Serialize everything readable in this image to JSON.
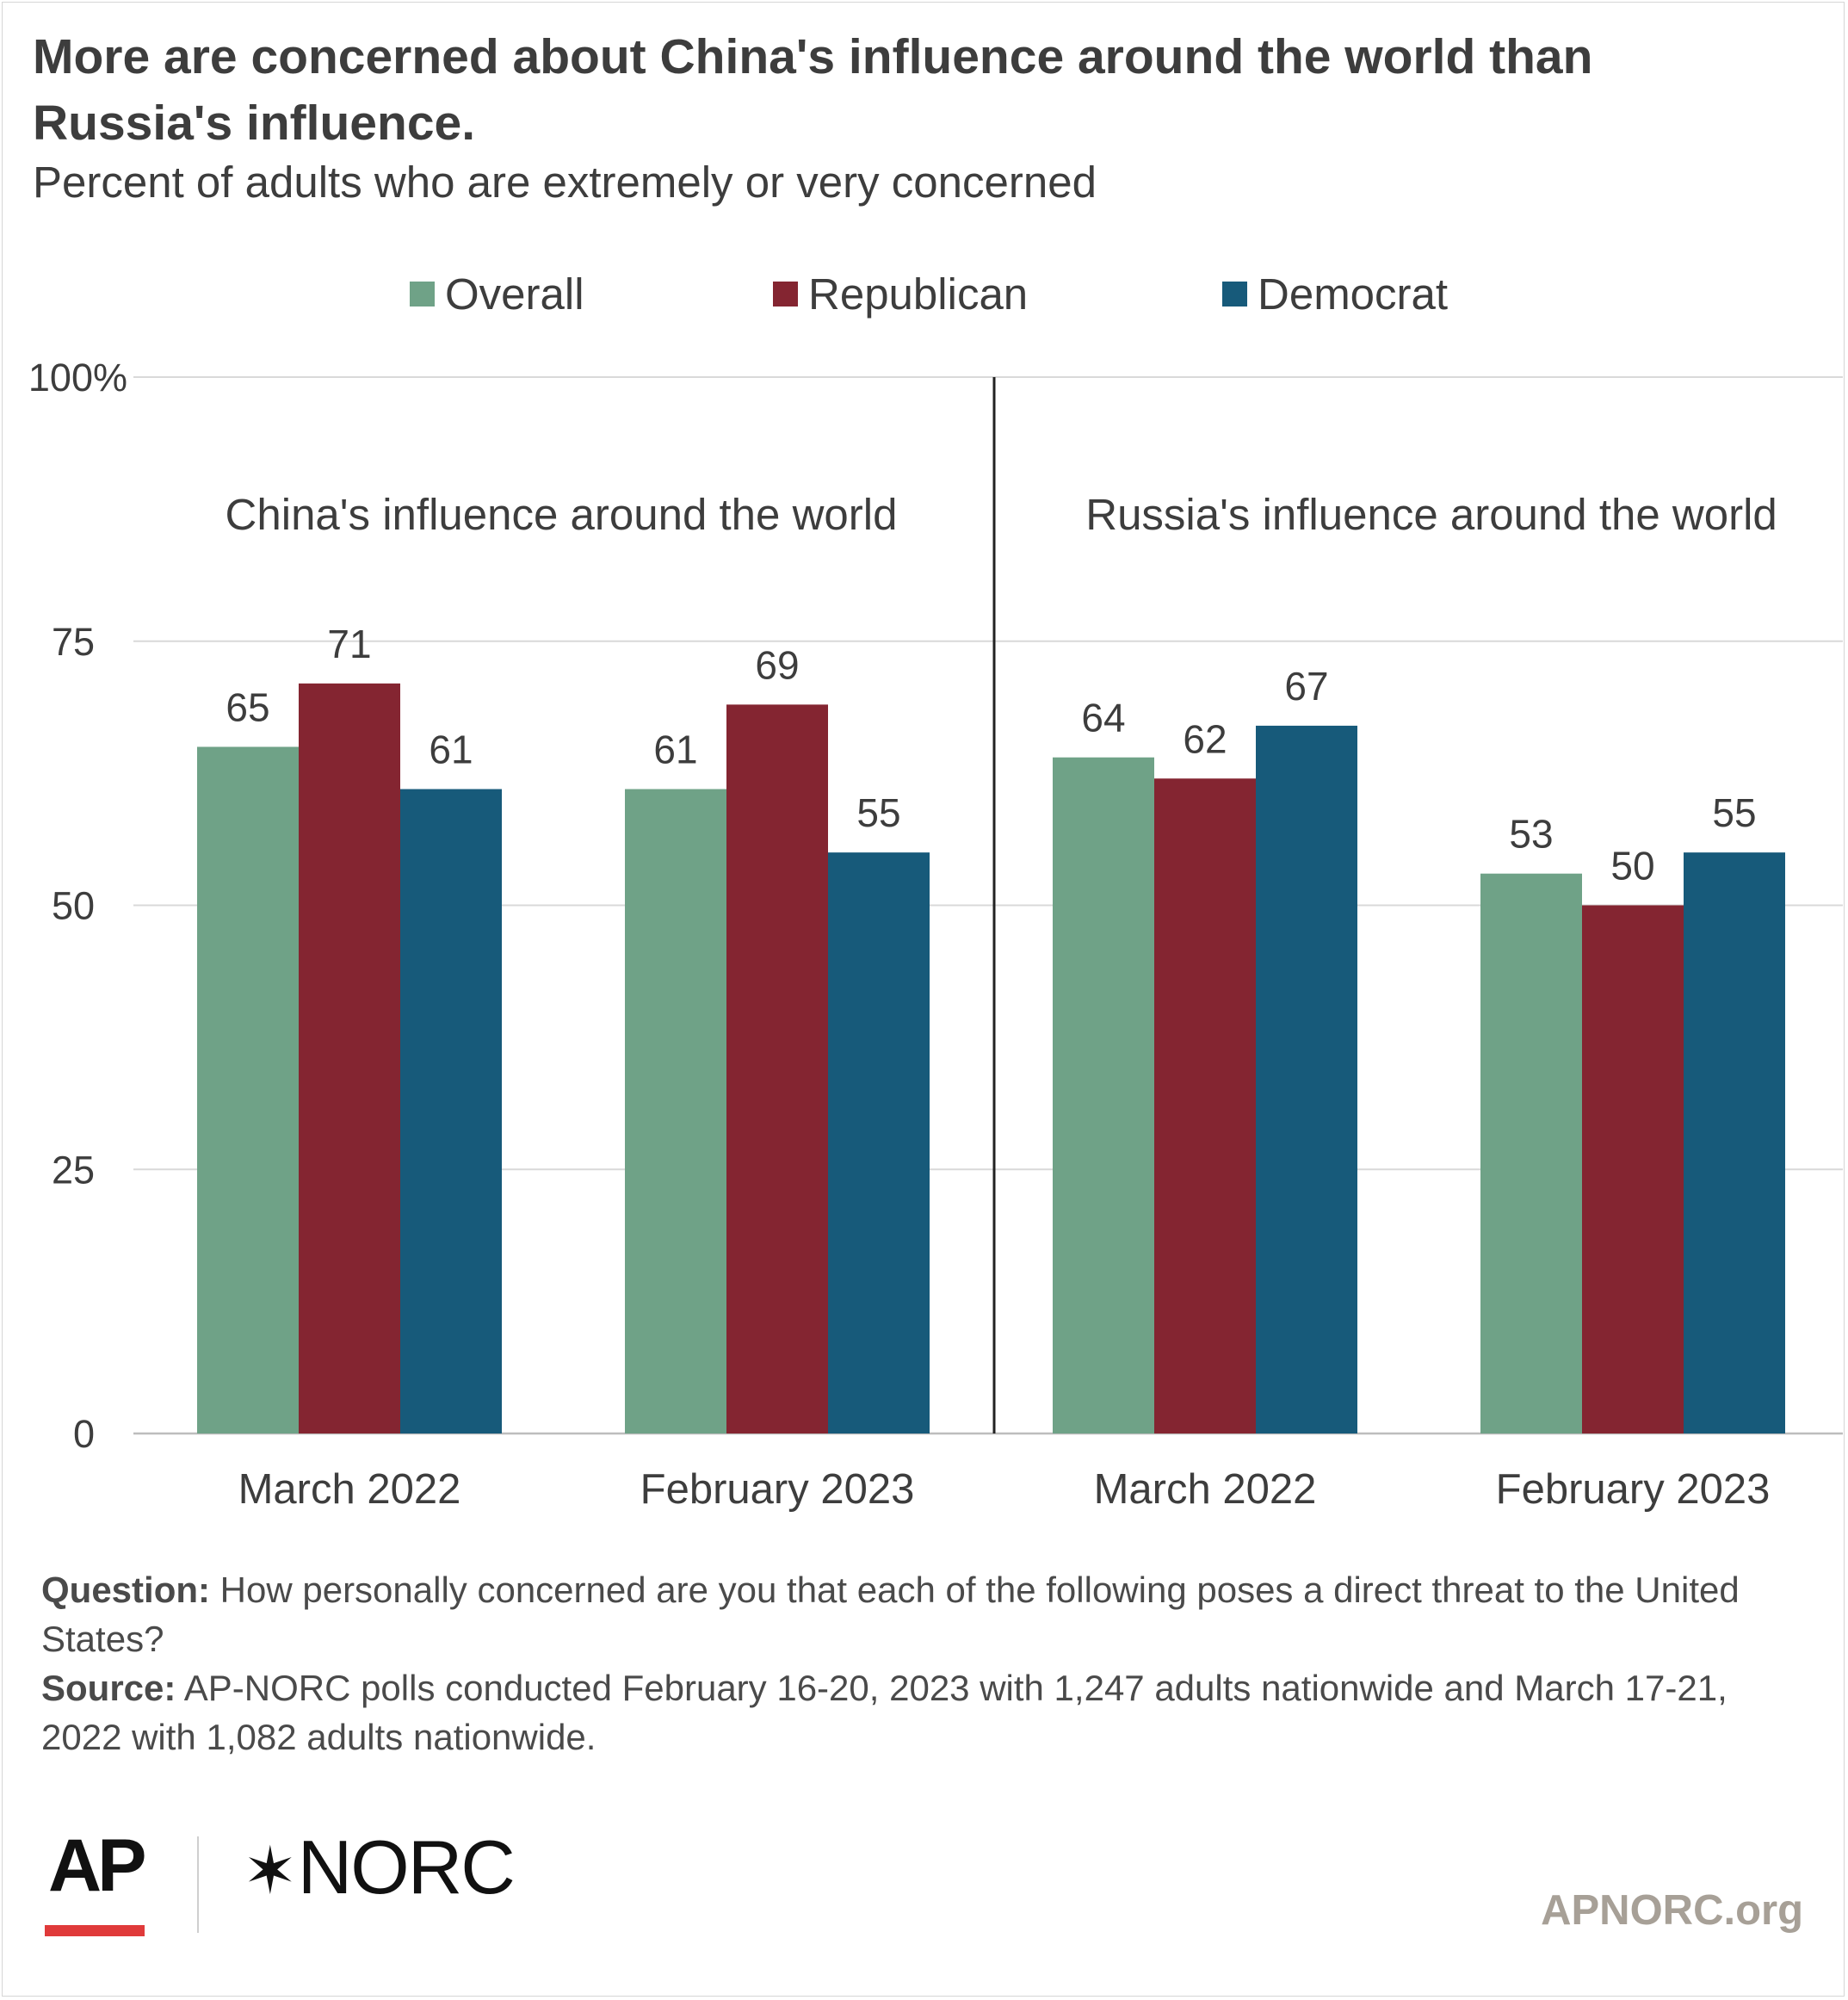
{
  "header": {
    "title": "More are concerned about China's influence around the world than Russia's influence.",
    "subtitle": "Percent of adults who are extremely or very concerned"
  },
  "legend": [
    {
      "label": "Overall",
      "color": "#6fa287"
    },
    {
      "label": "Republican",
      "color": "#842531"
    },
    {
      "label": "Democrat",
      "color": "#175a7a"
    }
  ],
  "chart_data": {
    "type": "bar",
    "ylim": [
      0,
      100
    ],
    "yticks": [
      "0",
      "25",
      "50",
      "75",
      "100%"
    ],
    "ytick_values": [
      0,
      25,
      50,
      75,
      100
    ],
    "grid": true,
    "legend_position": "top",
    "panels": [
      {
        "title": "China's influence around the world",
        "categories": [
          "March 2022",
          "February 2023"
        ],
        "series": [
          {
            "name": "Overall",
            "values": [
              65,
              61
            ]
          },
          {
            "name": "Republican",
            "values": [
              71,
              69
            ]
          },
          {
            "name": "Democrat",
            "values": [
              61,
              55
            ]
          }
        ]
      },
      {
        "title": "Russia's influence around the world",
        "categories": [
          "March 2022",
          "February 2023"
        ],
        "series": [
          {
            "name": "Overall",
            "values": [
              64,
              53
            ]
          },
          {
            "name": "Republican",
            "values": [
              62,
              50
            ]
          },
          {
            "name": "Democrat",
            "values": [
              67,
              55
            ]
          }
        ]
      }
    ]
  },
  "notes": {
    "question_label": "Question:",
    "question_text": " How personally concerned are you that each of the following poses a direct threat to the United States?",
    "source_label": "Source:",
    "source_text": " AP-NORC polls conducted February 16-20, 2023 with 1,247 adults nationwide and March 17-21, 2022 with 1,082 adults nationwide."
  },
  "footer": {
    "ap_logo": "AP",
    "norc_logo": "NORC",
    "website": "APNORC.org"
  }
}
